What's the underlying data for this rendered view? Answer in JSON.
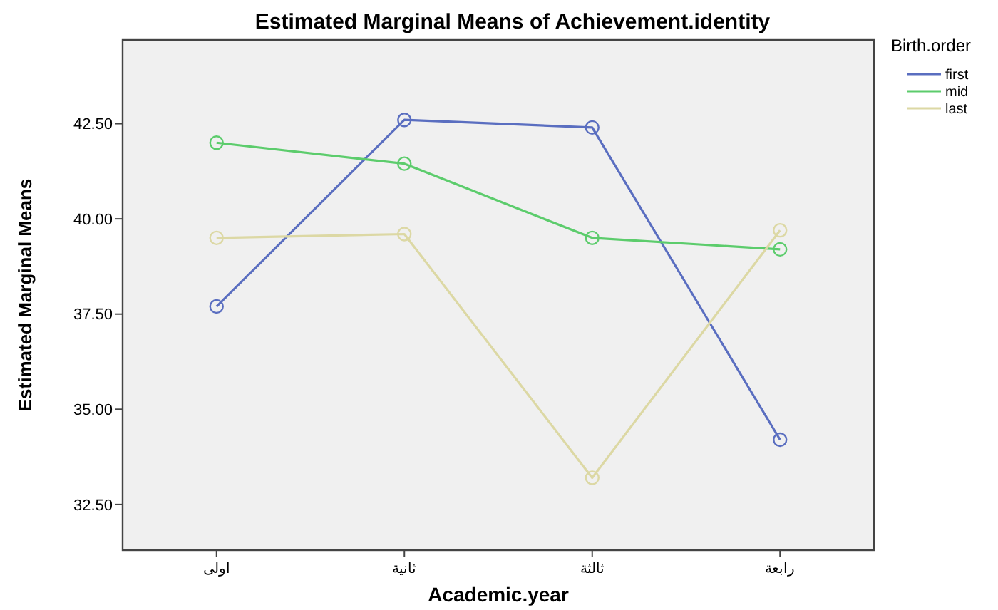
{
  "chart_data": {
    "type": "line",
    "title": "Estimated Marginal Means of Achievement.identity",
    "xlabel": "Academic.year",
    "ylabel": "Estimated Marginal Means",
    "legend_title": "Birth.order",
    "categories": [
      "اولى",
      "ثانية",
      "ثالثة",
      "رابعة"
    ],
    "series": [
      {
        "name": "first",
        "color": "#5a6ec0",
        "values": [
          37.7,
          42.6,
          42.4,
          34.2
        ]
      },
      {
        "name": "mid",
        "color": "#5ccc6c",
        "values": [
          42.0,
          41.45,
          39.5,
          39.2
        ]
      },
      {
        "name": "last",
        "color": "#dcd8a4",
        "values": [
          39.5,
          39.6,
          33.2,
          39.7
        ]
      }
    ],
    "ylim": [
      31.3,
      44.7
    ],
    "yticks": [
      {
        "value": 32.5,
        "label": "32.50"
      },
      {
        "value": 35,
        "label": "35.00"
      },
      {
        "value": 37.5,
        "label": "37.50"
      },
      {
        "value": 40,
        "label": "40.00"
      },
      {
        "value": 42.5,
        "label": "42.50"
      }
    ],
    "grid": false,
    "legend": "top right",
    "marker": "circle",
    "line_style": "solid"
  }
}
